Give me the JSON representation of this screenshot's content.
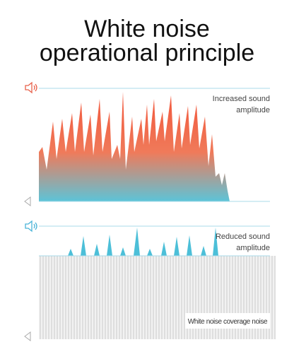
{
  "title": [
    "White noise",
    "operational principle"
  ],
  "panels": [
    {
      "label": [
        "Increased sound",
        "amplitude"
      ]
    },
    {
      "label": [
        "Reduced sound",
        "amplitude"
      ]
    }
  ],
  "overlay_label": "White noise coverage noise"
}
